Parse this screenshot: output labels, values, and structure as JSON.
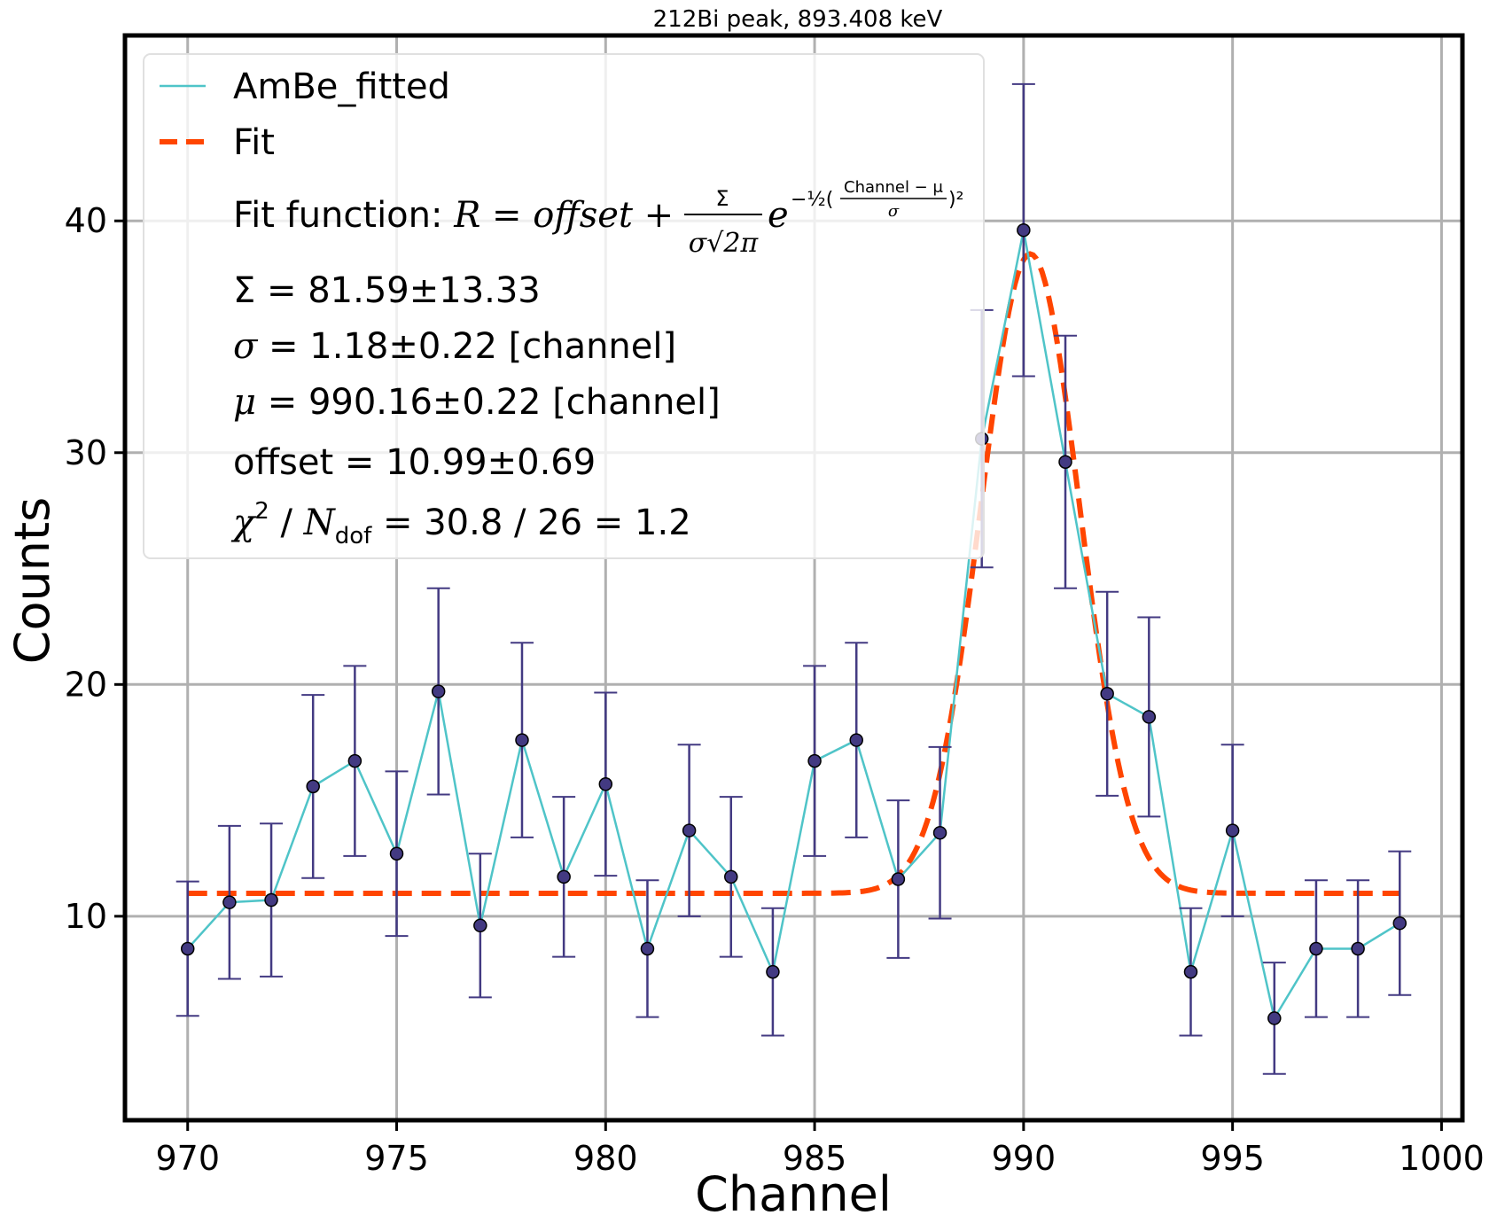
{
  "chart_data": {
    "type": "line",
    "title": "212Bi peak, 893.408 keV",
    "xlabel": "Channel",
    "ylabel": "Counts",
    "xlim": [
      968.5,
      1000.5
    ],
    "ylim": [
      1.2,
      48.0
    ],
    "xticks": [
      970,
      975,
      980,
      985,
      990,
      995,
      1000
    ],
    "yticks": [
      10,
      20,
      30,
      40
    ],
    "grid": true,
    "legend_position": "top-left",
    "series": [
      {
        "name": "AmBe_fitted",
        "color": "#4fc4c8",
        "marker_color": "#433a82",
        "errorbar_color": "#433a82",
        "x": [
          970,
          971,
          972,
          973,
          974,
          975,
          976,
          977,
          978,
          979,
          980,
          981,
          982,
          983,
          984,
          985,
          986,
          987,
          988,
          989,
          990,
          991,
          992,
          993,
          994,
          995,
          996,
          997,
          998,
          999
        ],
        "y": [
          8.6,
          10.6,
          10.7,
          15.6,
          16.7,
          12.7,
          19.7,
          9.6,
          17.6,
          11.7,
          15.7,
          8.6,
          13.7,
          11.7,
          7.6,
          16.7,
          17.6,
          11.6,
          13.6,
          30.6,
          39.6,
          29.6,
          19.6,
          18.6,
          7.6,
          13.7,
          5.6,
          8.6,
          8.6,
          9.7
        ],
        "yerr": [
          2.9,
          3.3,
          3.3,
          3.95,
          4.1,
          3.55,
          4.45,
          3.1,
          4.2,
          3.45,
          3.95,
          2.95,
          3.7,
          3.45,
          2.75,
          4.1,
          4.2,
          3.4,
          3.7,
          5.55,
          6.3,
          5.45,
          4.4,
          4.3,
          2.75,
          3.7,
          2.4,
          2.95,
          2.95,
          3.1
        ]
      },
      {
        "name": "Fit",
        "color": "#ff4500",
        "style": "dashed",
        "function": "gaussian_plus_offset",
        "x_range": [
          970,
          999
        ],
        "params": {
          "Sigma": 81.59,
          "sigma": 1.18,
          "mu": 990.16,
          "offset": 10.99
        }
      }
    ],
    "annotations": {
      "fit_function_prefix": "Fit function: ",
      "fit_function_R": "R",
      "fit_function_eq": " = offset + ",
      "fit_function_num": "Σ",
      "fit_function_den": "σ√2π",
      "fit_function_e": "e",
      "fit_function_exp": "−½(",
      "fit_function_frac_num": "Channel − μ",
      "fit_function_frac_den": "σ",
      "fit_function_exp_end": ")²",
      "sigma_sum_line": "Σ = 81.59±13.33",
      "sigma_sym": "σ",
      "sigma_rest": " = 1.18±0.22 [channel]",
      "mu_sym": "μ",
      "mu_rest": " = 990.16±0.22 [channel]",
      "offset_line": "offset = 10.99±0.69",
      "chi_sym": "χ",
      "chi_sup": "2",
      "chi_mid": " / ",
      "ndof_sym": "N",
      "ndof_sub": "dof",
      "chi_rest": " = 30.8 / 26 = 1.2"
    }
  }
}
